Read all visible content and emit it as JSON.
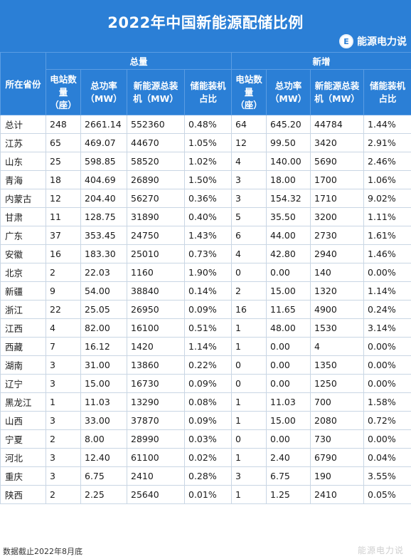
{
  "title": "2022年中国新能源配储比例",
  "brand": {
    "name": "能源电力说",
    "logo_letter": "E"
  },
  "header": {
    "row_label": "所在省份",
    "group_total": "总量",
    "group_new": "新增",
    "columns": [
      "电站数量（座）",
      "总功率（MW）",
      "新能源总装机（MW）",
      "储能装机占比",
      "电站数量（座）",
      "总功率（MW）",
      "新能源总装机（MW）",
      "储能装机占比"
    ]
  },
  "rows": [
    [
      "总计",
      "248",
      "2661.14",
      "552360",
      "0.48%",
      "64",
      "645.20",
      "44784",
      "1.44%"
    ],
    [
      "江苏",
      "65",
      "469.07",
      "44670",
      "1.05%",
      "12",
      "99.50",
      "3420",
      "2.91%"
    ],
    [
      "山东",
      "25",
      "598.85",
      "58520",
      "1.02%",
      "4",
      "140.00",
      "5690",
      "2.46%"
    ],
    [
      "青海",
      "18",
      "404.69",
      "26890",
      "1.50%",
      "3",
      "18.00",
      "1700",
      "1.06%"
    ],
    [
      "内蒙古",
      "12",
      "204.40",
      "56270",
      "0.36%",
      "3",
      "154.32",
      "1710",
      "9.02%"
    ],
    [
      "甘肃",
      "11",
      "128.75",
      "31890",
      "0.40%",
      "5",
      "35.50",
      "3200",
      "1.11%"
    ],
    [
      "广东",
      "37",
      "353.45",
      "24750",
      "1.43%",
      "6",
      "44.00",
      "2730",
      "1.61%"
    ],
    [
      "安徽",
      "16",
      "183.30",
      "25010",
      "0.73%",
      "4",
      "42.80",
      "2940",
      "1.46%"
    ],
    [
      "北京",
      "2",
      "22.03",
      "1160",
      "1.90%",
      "0",
      "0.00",
      "140",
      "0.00%"
    ],
    [
      "新疆",
      "9",
      "54.00",
      "38840",
      "0.14%",
      "2",
      "15.00",
      "1320",
      "1.14%"
    ],
    [
      "浙江",
      "22",
      "25.05",
      "26950",
      "0.09%",
      "16",
      "11.65",
      "4900",
      "0.24%"
    ],
    [
      "江西",
      "4",
      "82.00",
      "16100",
      "0.51%",
      "1",
      "48.00",
      "1530",
      "3.14%"
    ],
    [
      "西藏",
      "7",
      "16.12",
      "1420",
      "1.14%",
      "1",
      "0.00",
      "4",
      "0.00%"
    ],
    [
      "湖南",
      "3",
      "31.00",
      "13860",
      "0.22%",
      "0",
      "0.00",
      "1350",
      "0.00%"
    ],
    [
      "辽宁",
      "3",
      "15.00",
      "16730",
      "0.09%",
      "0",
      "0.00",
      "1250",
      "0.00%"
    ],
    [
      "黑龙江",
      "1",
      "11.03",
      "13290",
      "0.08%",
      "1",
      "11.03",
      "700",
      "1.58%"
    ],
    [
      "山西",
      "3",
      "33.00",
      "37870",
      "0.09%",
      "1",
      "15.00",
      "2080",
      "0.72%"
    ],
    [
      "宁夏",
      "2",
      "8.00",
      "28990",
      "0.03%",
      "0",
      "0.00",
      "730",
      "0.00%"
    ],
    [
      "河北",
      "3",
      "12.40",
      "61100",
      "0.02%",
      "1",
      "2.40",
      "6790",
      "0.04%"
    ],
    [
      "重庆",
      "3",
      "6.75",
      "2410",
      "0.28%",
      "3",
      "6.75",
      "190",
      "3.55%"
    ],
    [
      "陕西",
      "2",
      "2.25",
      "25640",
      "0.01%",
      "1",
      "1.25",
      "2410",
      "0.05%"
    ]
  ],
  "footnote": "数据截止2022年8月底",
  "watermark": "能源电力说"
}
